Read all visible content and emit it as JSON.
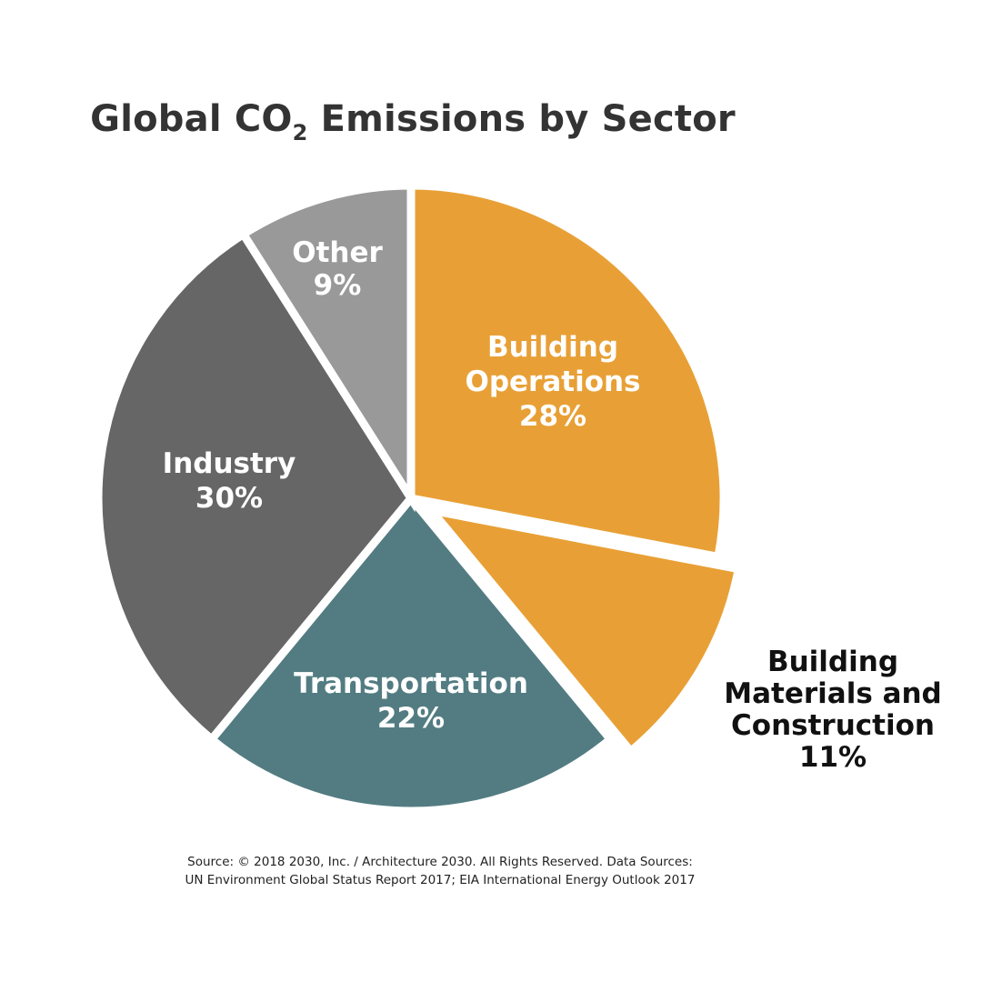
{
  "chart_data": {
    "type": "pie",
    "title": {
      "main": "Global CO",
      "subscript": "2",
      "rest": " Emissions by Sector"
    },
    "slices": [
      {
        "name": "Building Operations",
        "label_lines": [
          "Building",
          "Operations"
        ],
        "value": 28,
        "value_label": "28%",
        "color": "#E8A036",
        "label_color": "#ffffff",
        "exploded": false
      },
      {
        "name": "Building Materials and Construction",
        "label_lines": [
          "Building",
          "Materials and",
          "Construction"
        ],
        "value": 11,
        "value_label": "11%",
        "color": "#E8A036",
        "label_color": "#111111",
        "exploded": true
      },
      {
        "name": "Transportation",
        "label_lines": [
          "Transportation"
        ],
        "value": 22,
        "value_label": "22%",
        "color": "#527C82",
        "label_color": "#ffffff",
        "exploded": false
      },
      {
        "name": "Industry",
        "label_lines": [
          "Industry"
        ],
        "value": 30,
        "value_label": "30%",
        "color": "#666666",
        "label_color": "#ffffff",
        "exploded": false
      },
      {
        "name": "Other",
        "label_lines": [
          "Other"
        ],
        "value": 9,
        "value_label": "9%",
        "color": "#999999",
        "label_color": "#ffffff",
        "exploded": false
      }
    ]
  },
  "source": {
    "line1": "Source: © 2018 2030, Inc. / Architecture 2030. All Rights Reserved. Data Sources:",
    "line2": "UN Environment Global Status Report 2017; EIA International Energy Outlook 2017"
  }
}
